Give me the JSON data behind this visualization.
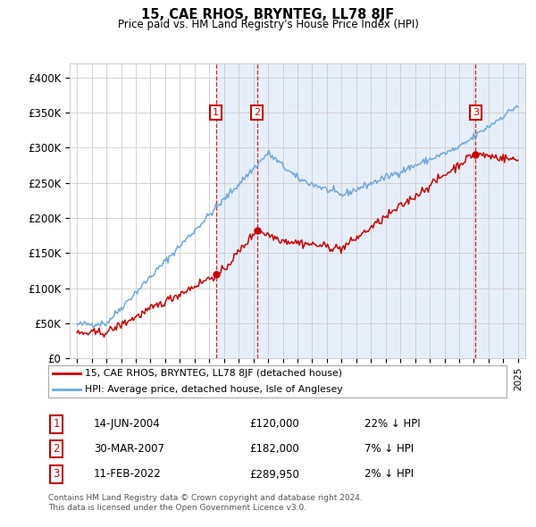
{
  "title": "15, CAE RHOS, BRYNTEG, LL78 8JF",
  "subtitle": "Price paid vs. HM Land Registry's House Price Index (HPI)",
  "legend_line1": "15, CAE RHOS, BRYNTEG, LL78 8JF (detached house)",
  "legend_line2": "HPI: Average price, detached house, Isle of Anglesey",
  "footer1": "Contains HM Land Registry data © Crown copyright and database right 2024.",
  "footer2": "This data is licensed under the Open Government Licence v3.0.",
  "transactions": [
    {
      "num": 1,
      "date": "14-JUN-2004",
      "price": 120000,
      "hpi_pct": "22% ↓ HPI",
      "x_year": 2004.45
    },
    {
      "num": 2,
      "date": "30-MAR-2007",
      "price": 182000,
      "hpi_pct": "7% ↓ HPI",
      "x_year": 2007.24
    },
    {
      "num": 3,
      "date": "11-FEB-2022",
      "price": 289950,
      "hpi_pct": "2% ↓ HPI",
      "x_year": 2022.12
    }
  ],
  "ylim": [
    0,
    420000
  ],
  "yticks": [
    0,
    50000,
    100000,
    150000,
    200000,
    250000,
    300000,
    350000,
    400000
  ],
  "ytick_labels": [
    "£0",
    "£50K",
    "£100K",
    "£150K",
    "£200K",
    "£250K",
    "£300K",
    "£350K",
    "£400K"
  ],
  "xlim_start": 1994.5,
  "xlim_end": 2025.5,
  "hpi_color": "#6fa8dc",
  "price_color": "#cc0000",
  "shade_color": "#dce9f7",
  "transaction_box_color": "#cc0000",
  "background_color": "#ffffff",
  "grid_color": "#cccccc"
}
